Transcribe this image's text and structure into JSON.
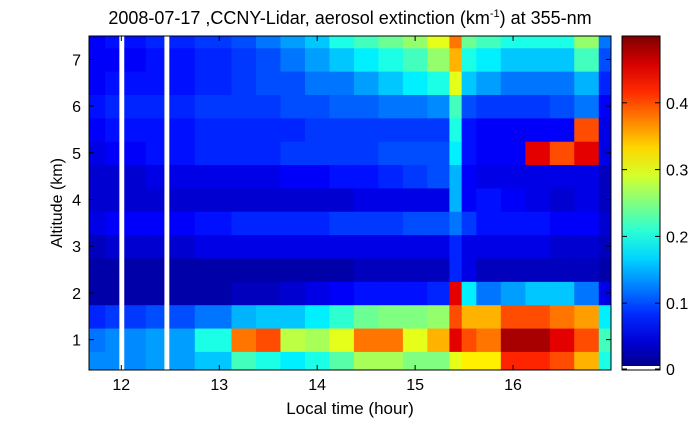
{
  "chart_data": {
    "type": "heatmap",
    "title_main": "2008-07-17 ,CCNY-Lidar, aerosol extinction (km",
    "title_sup": "-1",
    "title_tail": ") at 355-nm",
    "xlabel": "Local time (hour)",
    "ylabel": "Altitude (km)",
    "xlim": [
      11.67,
      17.0
    ],
    "ylim": [
      0.35,
      7.5
    ],
    "x_ticks": [
      {
        "value": 12,
        "label": "12"
      },
      {
        "value": 13,
        "label": "13"
      },
      {
        "value": 14,
        "label": "14"
      },
      {
        "value": 15,
        "label": "15"
      },
      {
        "value": 16,
        "label": "16"
      }
    ],
    "y_ticks": [
      {
        "value": 1,
        "label": "1"
      },
      {
        "value": 2,
        "label": "2"
      },
      {
        "value": 3,
        "label": "3"
      },
      {
        "value": 4,
        "label": "4"
      },
      {
        "value": 5,
        "label": "5"
      },
      {
        "value": 6,
        "label": "6"
      },
      {
        "value": 7,
        "label": "7"
      }
    ],
    "colorbar": {
      "colormap": "jet",
      "range": [
        0,
        0.5
      ],
      "ticks": [
        {
          "value": 0,
          "label": "0"
        },
        {
          "value": 0.1,
          "label": "0.1"
        },
        {
          "value": 0.2,
          "label": "0.2"
        },
        {
          "value": 0.3,
          "label": "0.3"
        },
        {
          "value": 0.4,
          "label": "0.4"
        }
      ]
    },
    "data_gaps": [
      {
        "start": 11.98,
        "end": 12.03
      },
      {
        "start": 12.44,
        "end": 12.49
      }
    ],
    "time_grid": [
      11.67,
      12.0,
      12.5,
      13.0,
      13.25,
      13.5,
      13.75,
      14.0,
      14.25,
      14.5,
      14.75,
      15.0,
      15.25,
      15.45,
      15.5,
      15.75,
      16.0,
      16.25,
      16.5,
      16.75,
      17.0
    ],
    "altitude_grid": [
      0.5,
      1.0,
      1.5,
      2.0,
      2.5,
      3.0,
      3.5,
      4.0,
      4.5,
      5.0,
      5.5,
      6.0,
      6.5,
      7.0,
      7.5
    ],
    "extinction_km-1": [
      [
        0.13,
        0.13,
        0.14,
        0.16,
        0.22,
        0.2,
        0.18,
        0.2,
        0.23,
        0.27,
        0.27,
        0.25,
        0.25,
        0.3,
        0.32,
        0.32,
        0.42,
        0.42,
        0.4,
        0.35,
        0.2
      ],
      [
        0.12,
        0.13,
        0.14,
        0.2,
        0.38,
        0.4,
        0.28,
        0.27,
        0.3,
        0.38,
        0.38,
        0.3,
        0.35,
        0.45,
        0.4,
        0.38,
        0.48,
        0.48,
        0.45,
        0.4,
        0.22
      ],
      [
        0.08,
        0.09,
        0.1,
        0.12,
        0.15,
        0.16,
        0.16,
        0.18,
        0.21,
        0.24,
        0.25,
        0.25,
        0.26,
        0.4,
        0.35,
        0.35,
        0.4,
        0.4,
        0.38,
        0.36,
        0.18
      ],
      [
        0.02,
        0.02,
        0.02,
        0.02,
        0.03,
        0.03,
        0.04,
        0.05,
        0.06,
        0.07,
        0.07,
        0.07,
        0.08,
        0.45,
        0.18,
        0.12,
        0.14,
        0.16,
        0.16,
        0.12,
        0.05
      ],
      [
        0.02,
        0.02,
        0.02,
        0.02,
        0.02,
        0.02,
        0.02,
        0.02,
        0.02,
        0.03,
        0.03,
        0.03,
        0.03,
        0.08,
        0.05,
        0.03,
        0.03,
        0.03,
        0.03,
        0.03,
        0.02
      ],
      [
        0.03,
        0.04,
        0.04,
        0.05,
        0.05,
        0.05,
        0.05,
        0.05,
        0.05,
        0.05,
        0.05,
        0.05,
        0.05,
        0.08,
        0.05,
        0.05,
        0.05,
        0.05,
        0.04,
        0.04,
        0.03
      ],
      [
        0.05,
        0.06,
        0.06,
        0.07,
        0.08,
        0.08,
        0.08,
        0.08,
        0.09,
        0.09,
        0.09,
        0.1,
        0.1,
        0.12,
        0.09,
        0.07,
        0.07,
        0.07,
        0.06,
        0.06,
        0.04
      ],
      [
        0.04,
        0.04,
        0.04,
        0.04,
        0.04,
        0.04,
        0.04,
        0.04,
        0.04,
        0.05,
        0.05,
        0.05,
        0.05,
        0.15,
        0.06,
        0.07,
        0.06,
        0.05,
        0.04,
        0.05,
        0.03
      ],
      [
        0.04,
        0.04,
        0.05,
        0.05,
        0.05,
        0.05,
        0.06,
        0.06,
        0.07,
        0.07,
        0.08,
        0.09,
        0.1,
        0.15,
        0.06,
        0.05,
        0.05,
        0.05,
        0.05,
        0.05,
        0.03
      ],
      [
        0.05,
        0.06,
        0.07,
        0.08,
        0.08,
        0.08,
        0.09,
        0.09,
        0.09,
        0.09,
        0.1,
        0.1,
        0.1,
        0.18,
        0.07,
        0.06,
        0.06,
        0.45,
        0.4,
        0.45,
        0.05
      ],
      [
        0.06,
        0.07,
        0.07,
        0.08,
        0.08,
        0.08,
        0.08,
        0.09,
        0.09,
        0.09,
        0.09,
        0.09,
        0.09,
        0.2,
        0.07,
        0.06,
        0.06,
        0.06,
        0.06,
        0.4,
        0.05
      ],
      [
        0.07,
        0.08,
        0.08,
        0.09,
        0.09,
        0.09,
        0.1,
        0.1,
        0.11,
        0.11,
        0.12,
        0.12,
        0.13,
        0.22,
        0.1,
        0.09,
        0.09,
        0.09,
        0.1,
        0.12,
        0.06
      ],
      [
        0.06,
        0.07,
        0.07,
        0.08,
        0.09,
        0.1,
        0.1,
        0.12,
        0.12,
        0.14,
        0.16,
        0.18,
        0.2,
        0.3,
        0.16,
        0.14,
        0.12,
        0.12,
        0.12,
        0.15,
        0.08
      ],
      [
        0.06,
        0.06,
        0.07,
        0.08,
        0.09,
        0.1,
        0.12,
        0.14,
        0.16,
        0.18,
        0.2,
        0.22,
        0.26,
        0.35,
        0.2,
        0.18,
        0.16,
        0.16,
        0.16,
        0.22,
        0.1
      ],
      [
        0.06,
        0.07,
        0.08,
        0.09,
        0.1,
        0.12,
        0.14,
        0.16,
        0.2,
        0.22,
        0.24,
        0.26,
        0.3,
        0.38,
        0.24,
        0.22,
        0.2,
        0.2,
        0.2,
        0.26,
        0.12
      ]
    ]
  }
}
